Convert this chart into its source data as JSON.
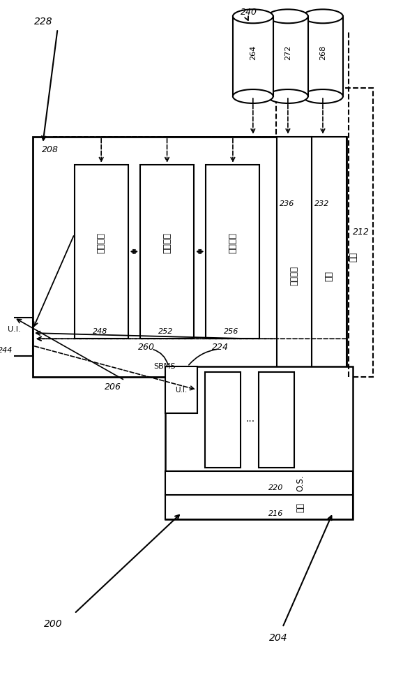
{
  "bg_color": "#ffffff",
  "lc": "#000000",
  "texts": {
    "228": "228",
    "240": "240",
    "212": "212",
    "208": "208",
    "236": "236",
    "232": "232",
    "248": "248",
    "252": "252",
    "256": "256",
    "244": "244",
    "206": "206",
    "260": "260",
    "224": "224",
    "220": "220",
    "216": "216",
    "200": "200",
    "204": "204",
    "264": "264",
    "272": "272",
    "268": "268",
    "prod": "产品管理",
    "sub": "订阅管理",
    "billing": "计费引擎",
    "os_sys": "操作系统",
    "hw": "硬件",
    "ui": "U.I.",
    "sbms": "SBMS",
    "network": "网络",
    "os2": "O.S.",
    "hw2": "硬件",
    "ui2": "U.I.",
    "dots": "..."
  }
}
